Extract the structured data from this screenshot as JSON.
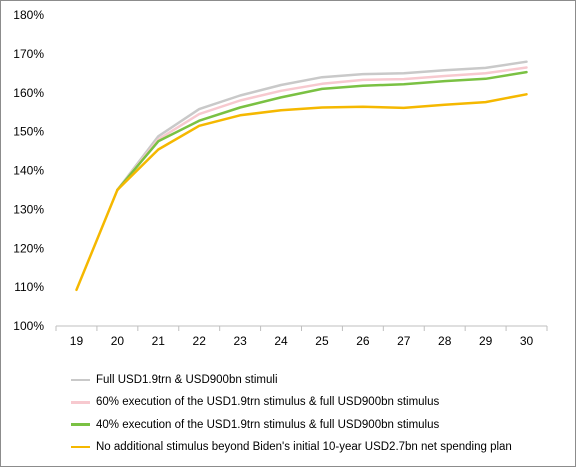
{
  "chart_data": {
    "type": "line",
    "categories": [
      "19",
      "20",
      "21",
      "22",
      "23",
      "24",
      "25",
      "26",
      "27",
      "28",
      "29",
      "30"
    ],
    "ylim": [
      100,
      180
    ],
    "yticks": [
      100,
      110,
      120,
      130,
      140,
      150,
      160,
      170,
      180
    ],
    "ytick_labels": [
      "100%",
      "110%",
      "120%",
      "130%",
      "140%",
      "150%",
      "160%",
      "170%",
      "180%"
    ],
    "grid": false,
    "legend_position": "bottom",
    "series": [
      {
        "name": "Full USD1.9trn & USD900bn stimuli",
        "color": "#c9c9c9",
        "values": [
          null,
          135.0,
          148.8,
          155.8,
          159.3,
          162.0,
          164.0,
          164.8,
          165.0,
          165.8,
          166.4,
          168.0
        ]
      },
      {
        "name": "60% execution of the USD1.9trn stimulus & full USD900bn stimulus",
        "color": "#f7c9cf",
        "values": [
          null,
          135.0,
          148.0,
          154.5,
          158.0,
          160.5,
          162.3,
          163.3,
          163.5,
          164.3,
          165.0,
          166.5
        ]
      },
      {
        "name": "40% execution of the USD1.9trn stimulus & full USD900bn stimulus",
        "color": "#7ac143",
        "values": [
          null,
          135.0,
          147.5,
          152.8,
          156.2,
          158.8,
          161.0,
          161.8,
          162.2,
          163.0,
          163.6,
          165.3
        ]
      },
      {
        "name": "No additional stimulus beyond Biden's initial 10-year USD2.7bn net spending plan",
        "color": "#f5b800",
        "values": [
          109.3,
          135.0,
          145.4,
          151.5,
          154.2,
          155.5,
          156.2,
          156.4,
          156.1,
          156.9,
          157.6,
          159.6
        ]
      }
    ]
  }
}
